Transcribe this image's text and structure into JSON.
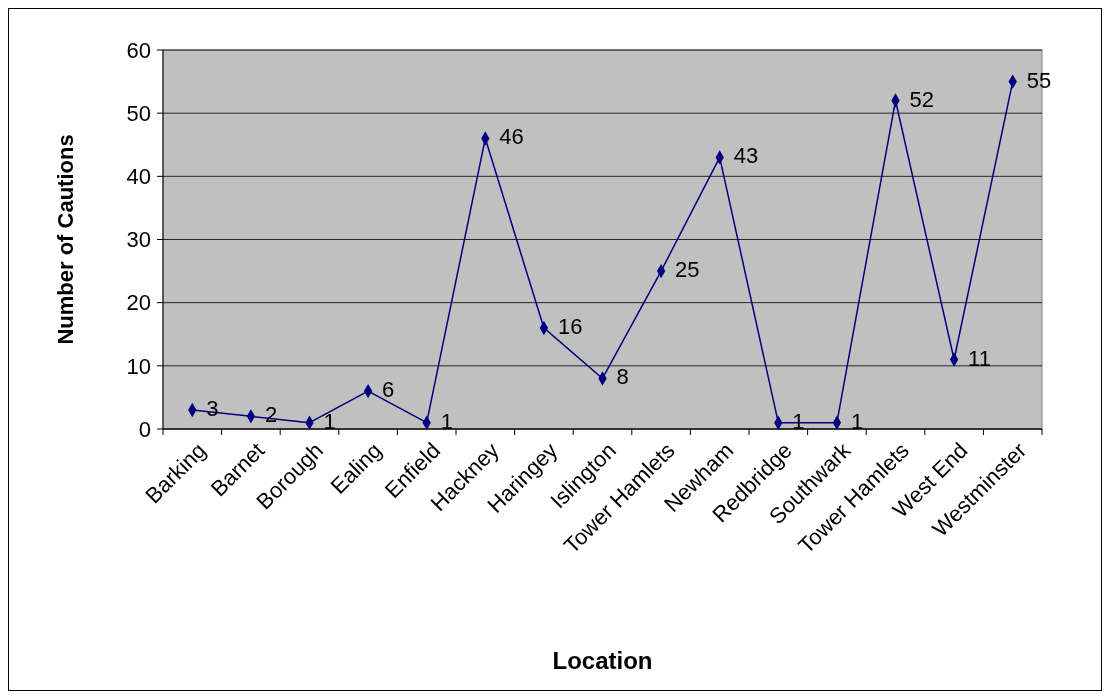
{
  "chart_data": {
    "type": "line",
    "xlabel": "Location",
    "ylabel": "Number of Cautions",
    "categories": [
      "Barking",
      "Barnet",
      "Borough",
      "Ealing",
      "Enfield",
      "Hackney",
      "Haringey",
      "Islington",
      "Tower Hamlets",
      "Newham",
      "Redbridge",
      "Southwark",
      "Tower Hamlets",
      "West End",
      "Westminster"
    ],
    "series": [
      {
        "color": "#000080",
        "values": [
          3,
          2,
          1,
          6,
          1,
          46,
          16,
          8,
          25,
          43,
          1,
          1,
          52,
          11,
          55
        ]
      }
    ],
    "ylim": [
      0,
      60
    ],
    "yticks": [
      0,
      10,
      20,
      30,
      40,
      50,
      60
    ],
    "grid": "y",
    "marker": "diamond",
    "line_style": "solid",
    "data_labels": true
  }
}
